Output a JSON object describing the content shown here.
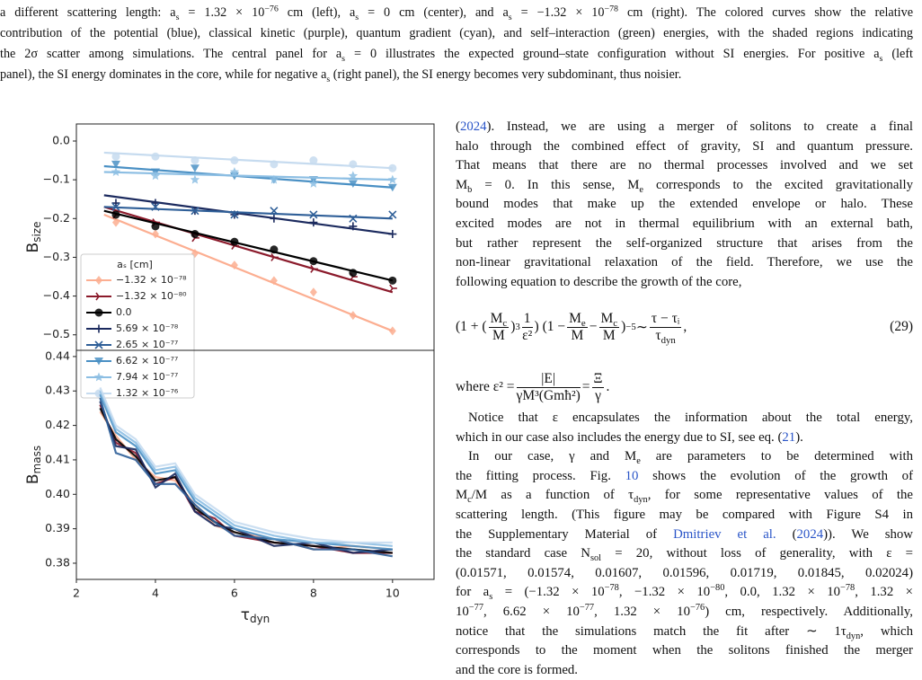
{
  "caption": [
    [
      "a different scattering length: a",
      {
        "text": "s",
        "sub": true
      },
      " = 1.32 × 10",
      {
        "text": "−76",
        "sup": true
      },
      " cm (left), a",
      {
        "text": "s",
        "sub": true
      },
      " = 0 cm (center), and a",
      {
        "text": "s",
        "sub": true
      },
      " = −1.32 × 10",
      {
        "text": "−78",
        "sup": true
      },
      " cm (right). The colored curves show the relative"
    ],
    [
      "contribution of the potential (blue), classical kinetic (purple), quantum gradient (cyan), and self–interaction (green) energies, with the shaded regions indicating"
    ],
    [
      "the 2σ scatter among simulations. The central panel for a",
      {
        "text": "s",
        "sub": true
      },
      " = 0 illustrates the expected ground–state configuration without SI energies. For positive a",
      {
        "text": "s",
        "sub": true
      },
      " (left"
    ],
    [
      "panel), the SI energy dominates in the core, while for negative a",
      {
        "text": "s",
        "sub": true
      },
      " (right panel), the SI energy becomes very subdominant, thus noisier."
    ]
  ],
  "body_top": [
    [
      "(",
      {
        "text": "2024",
        "link": true
      },
      "). Instead, we are using a merger of solitons to create a final"
    ],
    [
      "halo through the combined effect of gravity, SI and quantum pressure."
    ],
    [
      "That means that there are no thermal processes involved and we set"
    ],
    [
      "M",
      {
        "text": "b",
        "sub": true
      },
      " = 0. In this sense, M",
      {
        "text": "e",
        "sub": true
      },
      " corresponds to the excited gravitationally"
    ],
    [
      "bound modes that make up the extended envelope or halo. These"
    ],
    [
      "excited modes are not in thermal equilibrium with an external bath,"
    ],
    [
      "but rather represent the self-organized structure that arises from the"
    ],
    [
      "non-linear gravitational relaxation of the field. Therefore, we use the"
    ],
    [
      "following equation to describe the growth of the core,"
    ]
  ],
  "equation": [
    "(1 + (",
    {
      "num": "M",
      "num_sub": "c",
      "den": "M"
    },
    ")",
    {
      "text": "3",
      "sup": true
    },
    " ",
    {
      "num": "1",
      "den": "ε²"
    },
    ") (1 − ",
    {
      "num": "M",
      "num_sub": "e",
      "den": "M"
    },
    " − ",
    {
      "num": "M",
      "num_sub": "c",
      "den": "M"
    },
    ")",
    {
      "text": "−5",
      "sup": true
    },
    " ∼ ",
    {
      "num": "τ − τᵢ",
      "den": "τ",
      "den_sub": "dyn"
    },
    ","
  ],
  "equation_number": "(29)",
  "where": [
    "where ε² = ",
    {
      "num": "|E|",
      "den": "γM³(Gmħ²)"
    },
    " = ",
    {
      "num": "Ξ",
      "den": "γ"
    },
    "."
  ],
  "body_bottom": [
    [
      "Notice that ε encapsulates the information about the total energy,"
    ],
    [
      "which in our case also includes the energy due to SI, see eq. (",
      {
        "text": "21",
        "link": true
      },
      ")."
    ],
    [
      "In our case, γ and M",
      {
        "text": "e",
        "sub": true
      },
      " are parameters to be determined with"
    ],
    [
      "the fitting process. Fig. ",
      {
        "text": "10",
        "link": true
      },
      " shows the evolution of the growth of"
    ],
    [
      "M",
      {
        "text": "c",
        "sub": true
      },
      "/M as a function of τ",
      {
        "text": "dyn",
        "sub": true
      },
      ", for some representative values of the"
    ],
    [
      "scattering length. (This figure may be compared with Figure S4 in"
    ],
    [
      "the Supplementary Material of ",
      {
        "text": "Dmitriev et al.",
        "link": true
      },
      " (",
      {
        "text": "2024",
        "link": true
      },
      ")). We show"
    ],
    [
      "the standard case N",
      {
        "text": "sol",
        "sub": true
      },
      " = 20, without loss of generality, with ε ="
    ],
    [
      "(0.01571, 0.01574, 0.01607, 0.01596, 0.01719, 0.01845, 0.02024)"
    ],
    [
      "for a",
      {
        "text": "s",
        "sub": true
      },
      " = (−1.32 × 10",
      {
        "text": "−78",
        "sup": true
      },
      ", −1.32 × 10",
      {
        "text": "−80",
        "sup": true
      },
      ", 0.0, 1.32 × 10",
      {
        "text": "−78",
        "sup": true
      },
      ", 1.32 ×"
    ],
    [
      "10",
      {
        "text": "−77",
        "sup": true
      },
      ", 6.62 × 10",
      {
        "text": "−77",
        "sup": true
      },
      ", 1.32 × 10",
      {
        "text": "−76",
        "sup": true
      },
      ") cm, respectively. Additionally,"
    ],
    [
      "notice that the simulations match the fit after ∼ 1τ",
      {
        "text": "dyn",
        "sub": true
      },
      ", which"
    ],
    [
      "corresponds to the moment when the solitons finished the merger"
    ],
    [
      "and the core is formed."
    ]
  ],
  "chart_data": [
    {
      "type": "scatter",
      "ylabel": "B",
      "ylabel_sub": "size",
      "xlim": [
        2,
        11.05
      ],
      "ylim": [
        -0.54,
        0.044
      ],
      "yticks": [
        {
          "value": 0,
          "label": "0.0"
        },
        {
          "value": -0.1,
          "label": "−0.1"
        },
        {
          "value": -0.2,
          "label": "−0.2"
        },
        {
          "value": -0.3,
          "label": "−0.3"
        },
        {
          "value": -0.4,
          "label": "−0.4"
        },
        {
          "value": -0.5,
          "label": "−0.5"
        }
      ],
      "legend_title": "aₛ [cm]",
      "x": [
        3,
        4,
        5,
        6,
        7,
        8,
        9,
        10
      ],
      "fit_x": [
        2.7,
        10
      ],
      "series": [
        {
          "name": "−1.32 × 10⁻⁷⁸",
          "color": "#fcae91",
          "marker": "diamond",
          "values": [
            -0.21,
            -0.24,
            -0.29,
            -0.32,
            -0.36,
            -0.39,
            -0.45,
            -0.49
          ],
          "fit": [
            -0.19,
            -0.49
          ]
        },
        {
          "name": "−1.32 × 10⁻⁸⁰",
          "color": "#8b1a2b",
          "marker": "tri",
          "values": [
            -0.19,
            -0.21,
            -0.25,
            -0.27,
            -0.3,
            -0.33,
            -0.35,
            -0.38
          ],
          "fit": [
            -0.17,
            -0.39
          ]
        },
        {
          "name": "0.0",
          "color": "#000000",
          "marker": "circle",
          "values": [
            -0.19,
            -0.22,
            -0.24,
            -0.26,
            -0.28,
            -0.31,
            -0.34,
            -0.36
          ],
          "fit": [
            -0.18,
            -0.36
          ]
        },
        {
          "name": "5.69 × 10⁻⁷⁸",
          "color": "#1b2a5e",
          "marker": "plus",
          "values": [
            -0.16,
            -0.16,
            -0.18,
            -0.19,
            -0.2,
            -0.21,
            -0.22,
            -0.24
          ],
          "fit": [
            -0.14,
            -0.24
          ]
        },
        {
          "name": "2.65 × 10⁻⁷⁷",
          "color": "#2f5f98",
          "marker": "x",
          "values": [
            -0.17,
            -0.17,
            -0.18,
            -0.19,
            -0.18,
            -0.19,
            -0.2,
            -0.19
          ],
          "fit": [
            -0.17,
            -0.2
          ]
        },
        {
          "name": "6.62 × 10⁻⁷⁷",
          "color": "#4a90c4",
          "marker": "tridown",
          "values": [
            -0.06,
            -0.08,
            -0.07,
            -0.09,
            -0.1,
            -0.1,
            -0.11,
            -0.12
          ],
          "fit": [
            -0.065,
            -0.12
          ]
        },
        {
          "name": "7.94 × 10⁻⁷⁷",
          "color": "#8cbee3",
          "marker": "star",
          "values": [
            -0.08,
            -0.09,
            -0.1,
            -0.08,
            -0.1,
            -0.11,
            -0.09,
            -0.1
          ],
          "fit": [
            -0.08,
            -0.1
          ]
        },
        {
          "name": "1.32 × 10⁻⁷⁶",
          "color": "#c6dbef",
          "marker": "circle",
          "values": [
            -0.04,
            -0.04,
            -0.05,
            -0.05,
            -0.06,
            -0.05,
            -0.06,
            -0.07
          ],
          "fit": [
            -0.03,
            -0.07
          ]
        }
      ]
    },
    {
      "type": "line",
      "ylabel": "B",
      "ylabel_sub": "mass",
      "xlabel": "τ",
      "xlabel_sub": "dyn",
      "xlim": [
        2,
        11.05
      ],
      "ylim": [
        0.3753,
        0.4418
      ],
      "xticks": [
        2,
        4,
        6,
        8,
        10
      ],
      "yticks": [
        0.38,
        0.39,
        {
          "value": 0.4,
          "label": "0.40"
        },
        0.41,
        0.42,
        0.43,
        0.44
      ],
      "x": [
        2.6,
        3,
        3.5,
        4,
        4.5,
        5,
        5.5,
        6,
        7,
        8,
        9,
        10
      ],
      "series": [
        {
          "color": "#fcae91",
          "values": [
            0.424,
            0.417,
            0.41,
            0.405,
            0.404,
            0.397,
            0.391,
            0.389,
            0.387,
            0.384,
            0.385,
            0.384
          ]
        },
        {
          "color": "#8b1a2b",
          "values": [
            0.426,
            0.415,
            0.412,
            0.403,
            0.405,
            0.395,
            0.393,
            0.388,
            0.386,
            0.385,
            0.383,
            0.383
          ]
        },
        {
          "color": "#000000",
          "values": [
            0.425,
            0.416,
            0.411,
            0.404,
            0.405,
            0.396,
            0.392,
            0.389,
            0.386,
            0.385,
            0.384,
            0.383
          ]
        },
        {
          "color": "#1b2a5e",
          "values": [
            0.427,
            0.414,
            0.413,
            0.402,
            0.406,
            0.395,
            0.391,
            0.39,
            0.385,
            0.386,
            0.383,
            0.384
          ]
        },
        {
          "color": "#2f5f98",
          "values": [
            0.428,
            0.412,
            0.41,
            0.403,
            0.403,
            0.397,
            0.392,
            0.388,
            0.387,
            0.384,
            0.384,
            0.382
          ]
        },
        {
          "color": "#4a90c4",
          "values": [
            0.429,
            0.418,
            0.414,
            0.406,
            0.407,
            0.398,
            0.394,
            0.39,
            0.387,
            0.386,
            0.385,
            0.384
          ]
        },
        {
          "color": "#8cbee3",
          "values": [
            0.43,
            0.419,
            0.415,
            0.407,
            0.408,
            0.399,
            0.395,
            0.391,
            0.388,
            0.386,
            0.386,
            0.385
          ]
        },
        {
          "color": "#c6dbef",
          "values": [
            0.431,
            0.42,
            0.416,
            0.408,
            0.409,
            0.4,
            0.396,
            0.392,
            0.389,
            0.387,
            0.386,
            0.386
          ]
        }
      ]
    }
  ]
}
